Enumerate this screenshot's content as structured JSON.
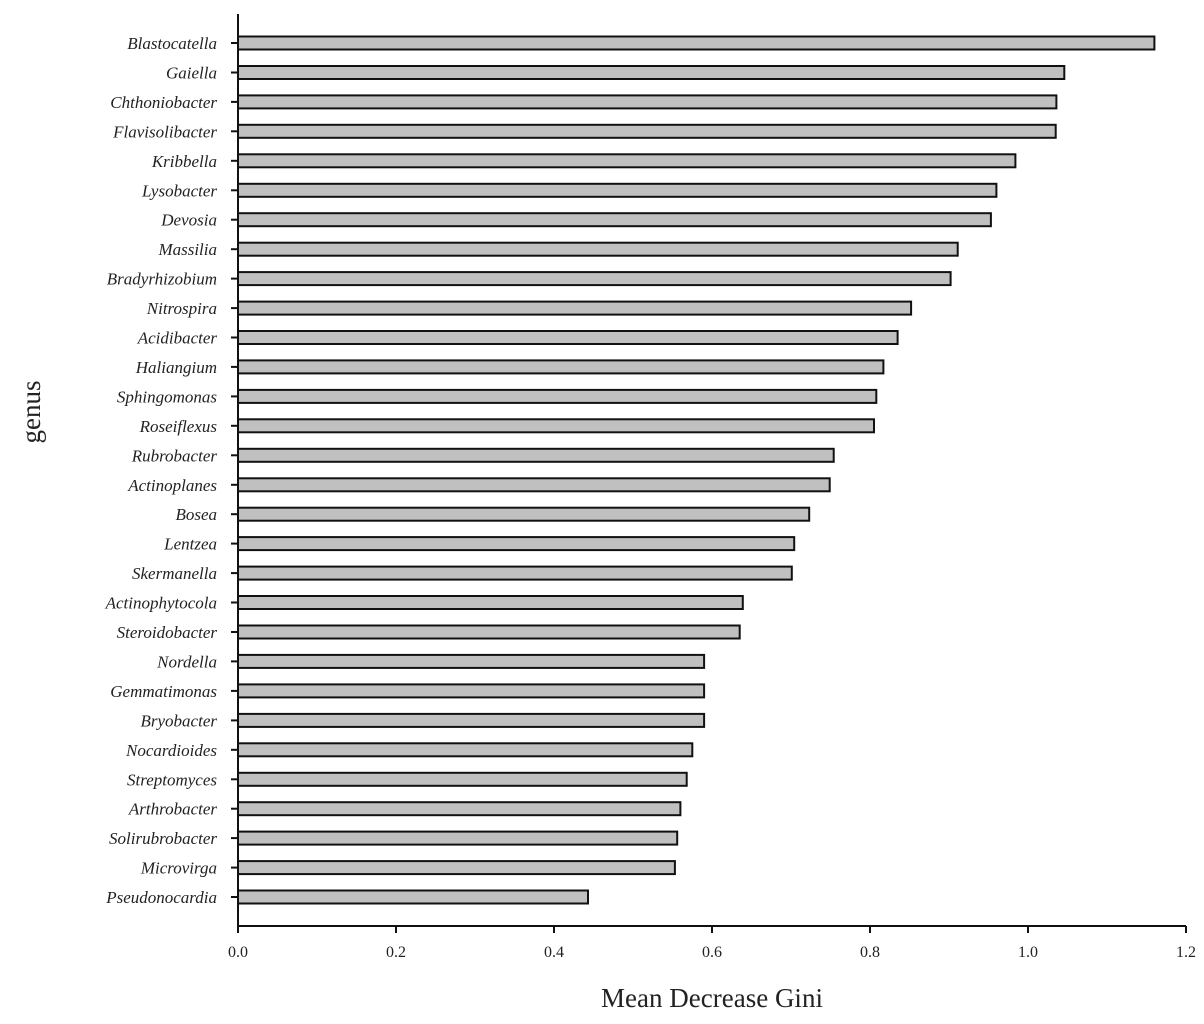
{
  "chart_data": {
    "type": "bar",
    "orientation": "horizontal",
    "title": "",
    "xlabel": "Mean Decrease Gini",
    "ylabel": "genus",
    "xlim": [
      0.0,
      1.2
    ],
    "xticks": [
      "0.0",
      "0.2",
      "0.4",
      "0.6",
      "0.8",
      "1.0",
      "1.2"
    ],
    "grid": false,
    "bar_color": "#c0c0c0",
    "categories": [
      "Blastocatella",
      "Gaiella",
      "Chthoniobacter",
      "Flavisolibacter",
      "Kribbella",
      "Lysobacter",
      "Devosia",
      "Massilia",
      "Bradyrhizobium",
      "Nitrospira",
      "Acidibacter",
      "Haliangium",
      "Sphingomonas",
      "Roseiflexus",
      "Rubrobacter",
      "Actinoplanes",
      "Bosea",
      "Lentzea",
      "Skermanella",
      "Actinophytocola",
      "Steroidobacter",
      "Nordella",
      "Gemmatimonas",
      "Bryobacter",
      "Nocardioides",
      "Streptomyces",
      "Arthrobacter",
      "Solirubrobacter",
      "Microvirga",
      "Pseudonocardia"
    ],
    "values": [
      1.16,
      1.046,
      1.036,
      1.035,
      0.984,
      0.96,
      0.953,
      0.911,
      0.902,
      0.852,
      0.835,
      0.817,
      0.808,
      0.805,
      0.754,
      0.749,
      0.723,
      0.704,
      0.701,
      0.639,
      0.635,
      0.59,
      0.59,
      0.59,
      0.575,
      0.568,
      0.56,
      0.556,
      0.553,
      0.443
    ]
  }
}
